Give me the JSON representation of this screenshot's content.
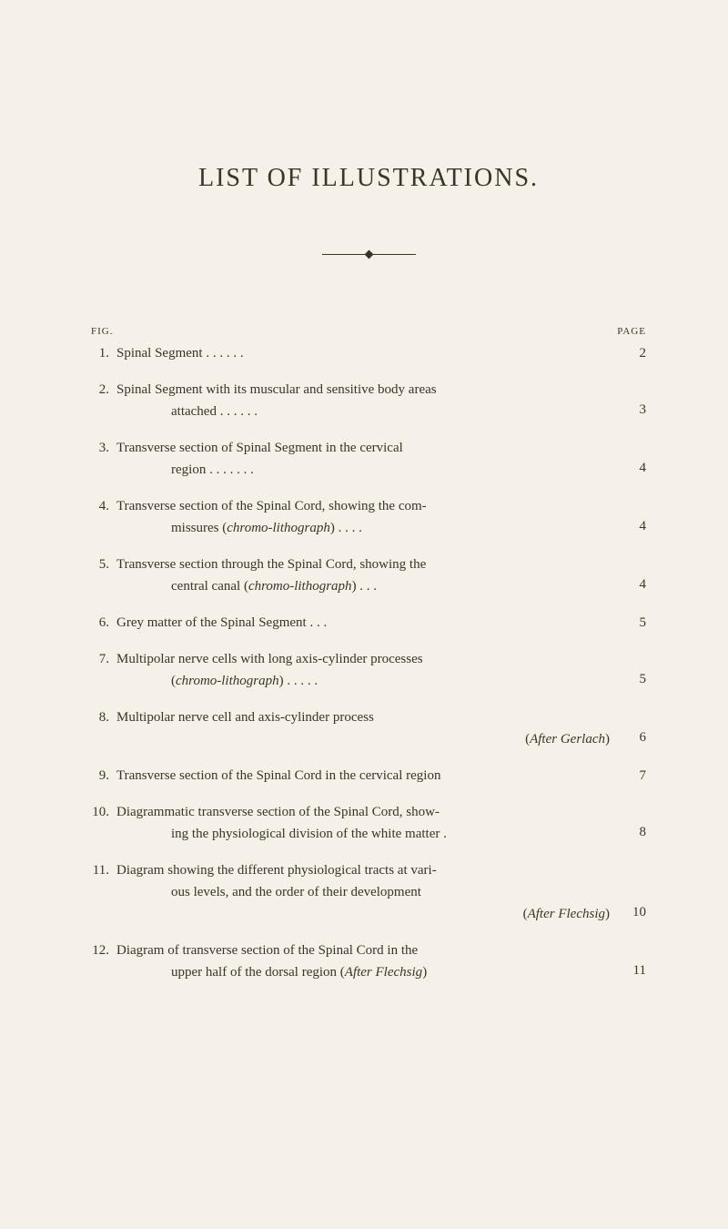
{
  "title": "LIST OF ILLUSTRATIONS.",
  "headers": {
    "fig": "FIG.",
    "page": "PAGE"
  },
  "entries": [
    {
      "num": "1.",
      "lines": [
        "Spinal Segment      .           .           .           .           .           ."
      ],
      "page": "2"
    },
    {
      "num": "2.",
      "lines": [
        "Spinal Segment with its muscular and sensitive body areas",
        "attached          .           .           .           .           .           ."
      ],
      "page": "3"
    },
    {
      "num": "3.",
      "lines": [
        "Transverse section of Spinal Segment in the cervical",
        "region .           .           .           .           .           .           ."
      ],
      "page": "4"
    },
    {
      "num": "4.",
      "lines": [
        "Transverse section of the Spinal Cord, showing the com-",
        "missures (<i>chromo-lithograph</i>)    .           .           .           ."
      ],
      "page": "4"
    },
    {
      "num": "5.",
      "lines": [
        "Transverse section through the Spinal Cord, showing the",
        "central canal (<i>chromo-lithograph</i>)           .           .           ."
      ],
      "page": "4"
    },
    {
      "num": "6.",
      "lines": [
        "Grey matter of the Spinal Segment           .           .           ."
      ],
      "page": "5"
    },
    {
      "num": "7.",
      "lines": [
        "Multipolar nerve cells with long axis-cylinder processes",
        "(<i>chromo-lithograph</i>)      .           .           .           .           ."
      ],
      "page": "5"
    },
    {
      "num": "8.",
      "lines": [
        "Multipolar nerve cell and axis-cylinder process",
        "<span class=\"attribution\">(<i>After Gerlach</i>)</span>"
      ],
      "page": "6"
    },
    {
      "num": "9.",
      "lines": [
        "Transverse section of the Spinal Cord in the cervical region"
      ],
      "page": "7"
    },
    {
      "num": "10.",
      "lines": [
        "Diagrammatic transverse section of the Spinal Cord, show-",
        "ing the physiological division of the white matter    ."
      ],
      "page": "8"
    },
    {
      "num": "11.",
      "lines": [
        "Diagram showing the different physiological tracts at vari-",
        "ous levels, and the order of their development",
        "<span class=\"attribution\">(<i>After Flechsig</i>)</span>"
      ],
      "page": "10"
    },
    {
      "num": "12.",
      "lines": [
        "Diagram of transverse section of the Spinal Cord in the",
        "upper half of the dorsal region               (<i>After Flechsig</i>)"
      ],
      "page": "11"
    }
  ]
}
